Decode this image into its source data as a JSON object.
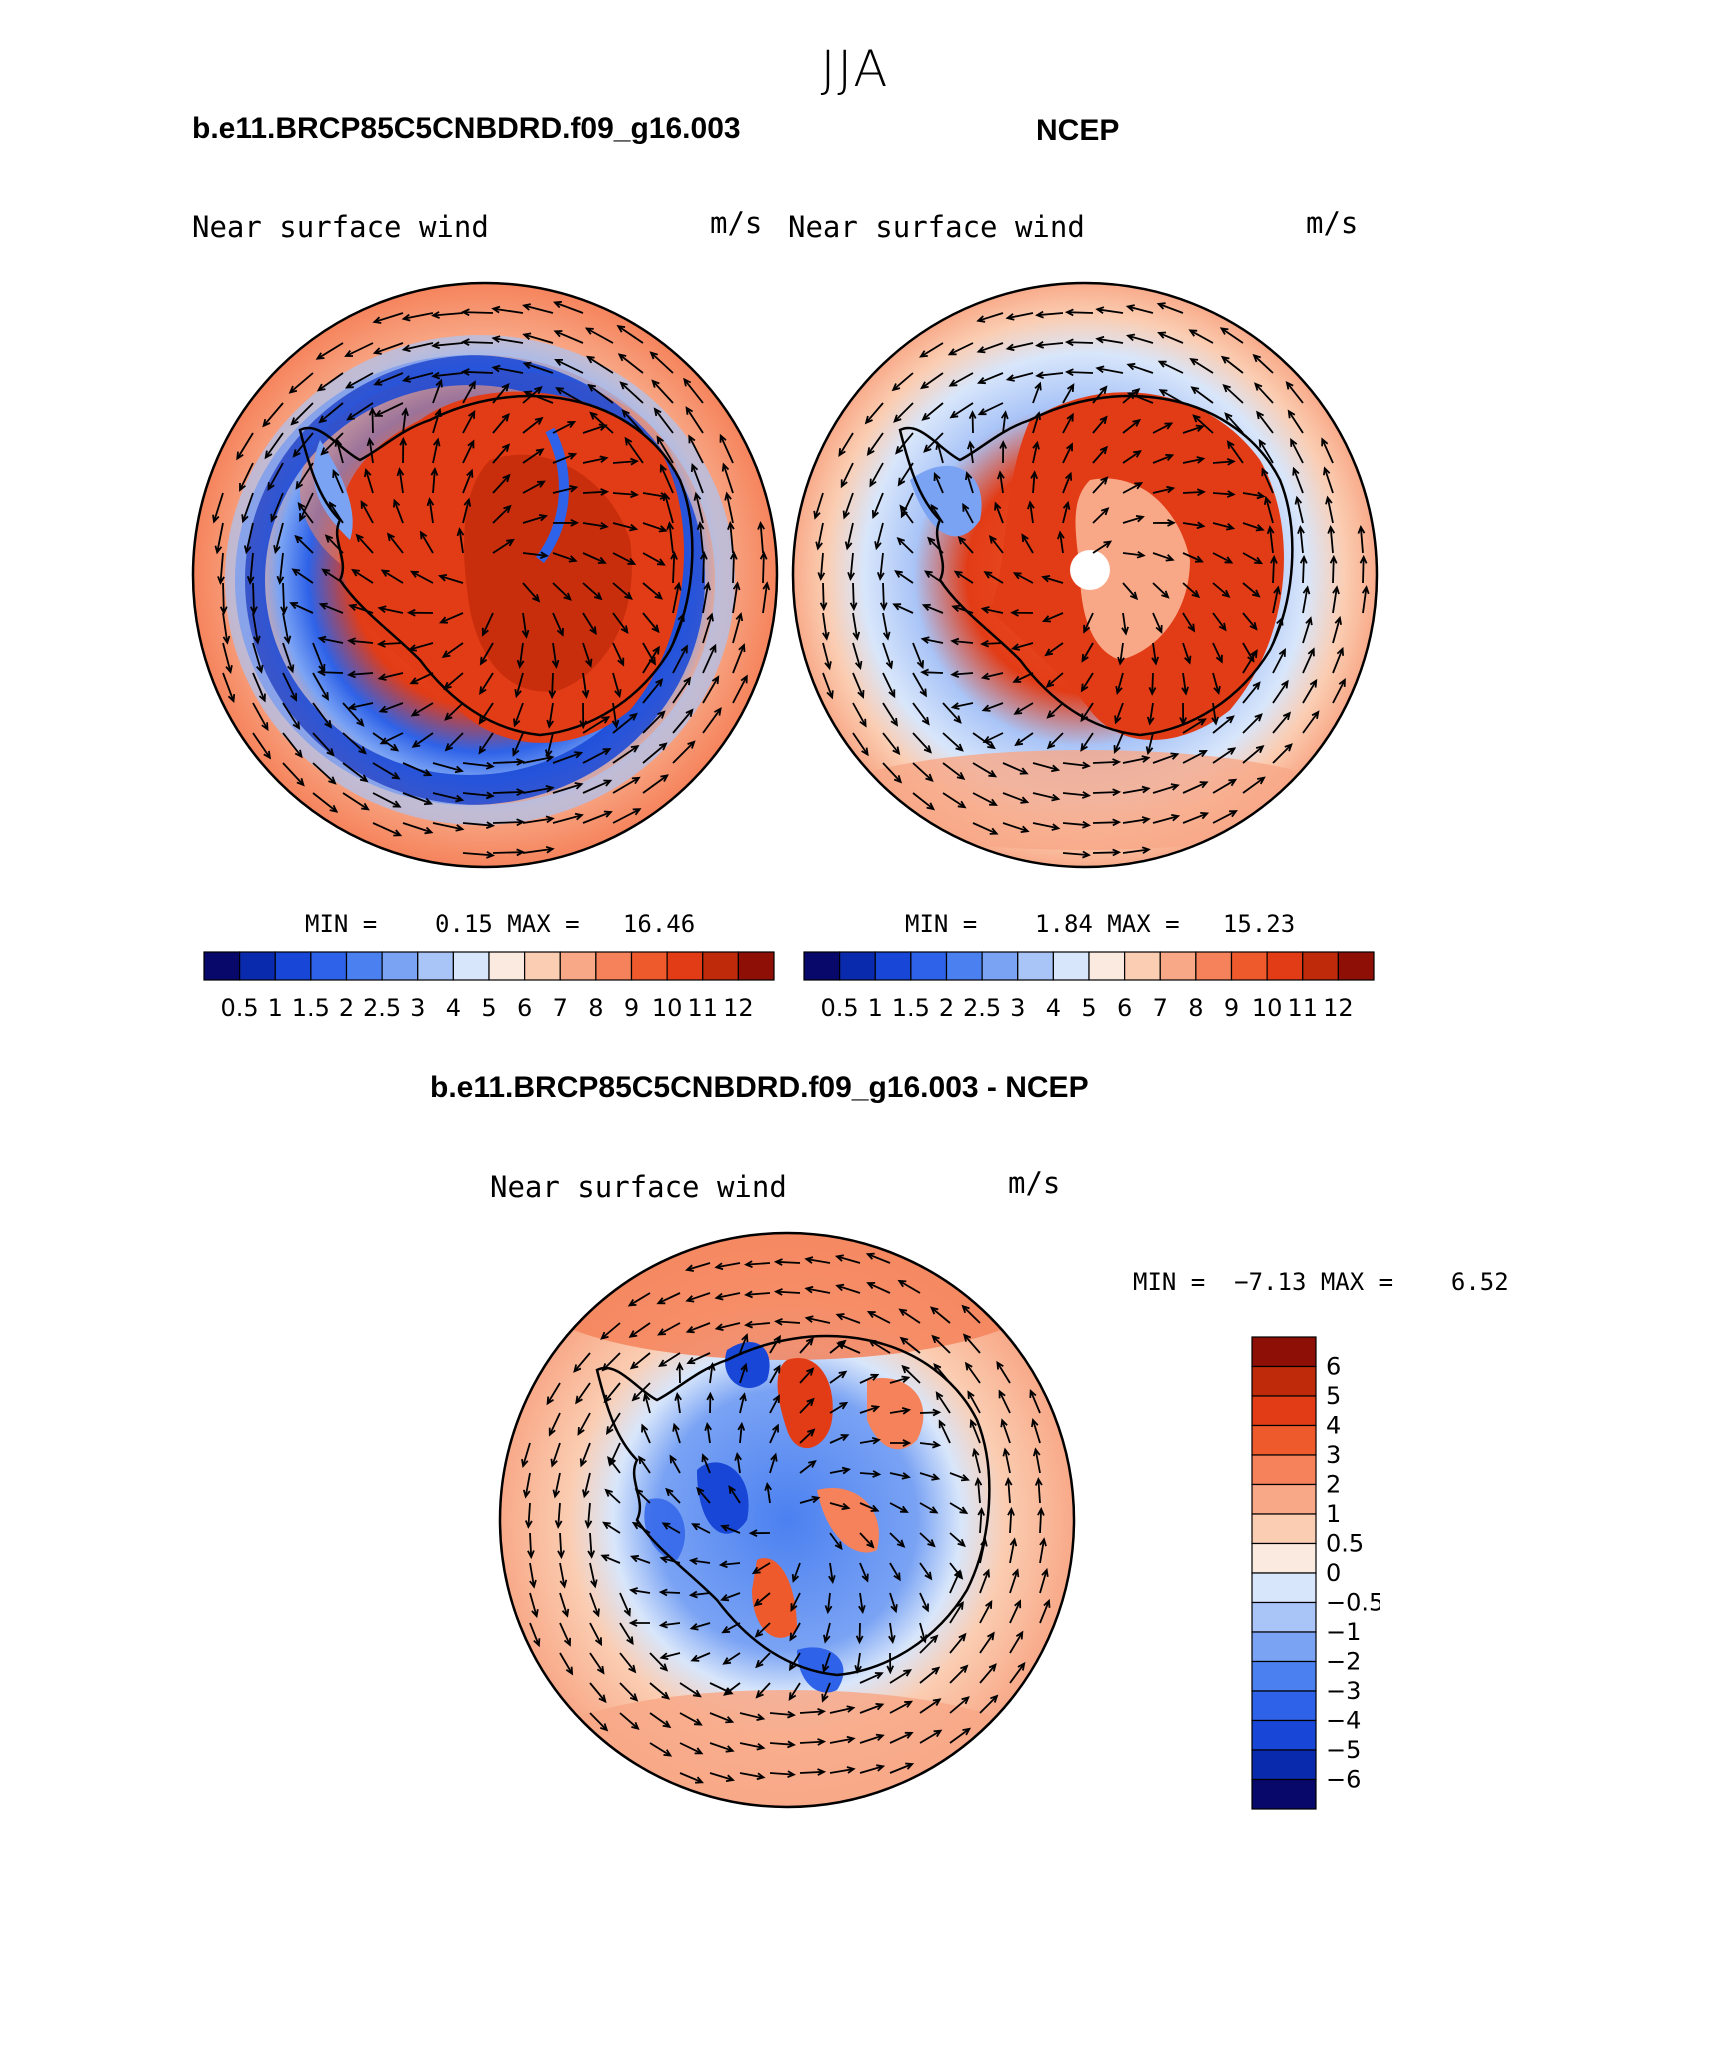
{
  "title": "JJA",
  "panels": [
    {
      "name": "model",
      "title": "b.e11.BRCP85C5CNBDRD.f09_g16.003",
      "variable": "Near surface wind",
      "units": "m/s",
      "min_label": "MIN =",
      "min_value": "0.15",
      "max_label": "MAX =",
      "max_value": "16.46"
    },
    {
      "name": "obs",
      "title": "NCEP",
      "variable": "Near surface wind",
      "units": "m/s",
      "min_label": "MIN =",
      "min_value": "1.84",
      "max_label": "MAX =",
      "max_value": "15.23"
    },
    {
      "name": "diff",
      "title": "b.e11.BRCP85C5CNBDRD.f09_g16.003 - NCEP",
      "variable": "Near surface wind",
      "units": "m/s",
      "min_label": "MIN =",
      "min_value": "−7.13",
      "max_label": "MAX =",
      "max_value": "6.52"
    }
  ],
  "colorbar_abs": {
    "labels": [
      "0.5",
      "1",
      "1.5",
      "2",
      "2.5",
      "3",
      "4",
      "5",
      "6",
      "7",
      "8",
      "9",
      "10",
      "11",
      "12"
    ],
    "colors": [
      "#08086b",
      "#0a2aae",
      "#1846d6",
      "#2e62e8",
      "#4b80f0",
      "#7aa3f4",
      "#a9c4f7",
      "#d8e6fb",
      "#fbeae0",
      "#fbcdb2",
      "#f8a887",
      "#f5825a",
      "#ef5a2c",
      "#e23c16",
      "#bf2a0a",
      "#8e0f05"
    ]
  },
  "colorbar_diff": {
    "labels": [
      "6",
      "5",
      "4",
      "3",
      "2",
      "1",
      "0.5",
      "0",
      "−0.5",
      "−1",
      "−2",
      "−3",
      "−4",
      "−5",
      "−6"
    ],
    "colors": [
      "#8e0f05",
      "#bf2a0a",
      "#e23c16",
      "#ef5a2c",
      "#f5825a",
      "#f8a887",
      "#fbcdb2",
      "#fbeae0",
      "#d8e6fb",
      "#a9c4f7",
      "#7aa3f4",
      "#4b80f0",
      "#2e62e8",
      "#1846d6",
      "#0a2aae",
      "#08086b"
    ]
  }
}
